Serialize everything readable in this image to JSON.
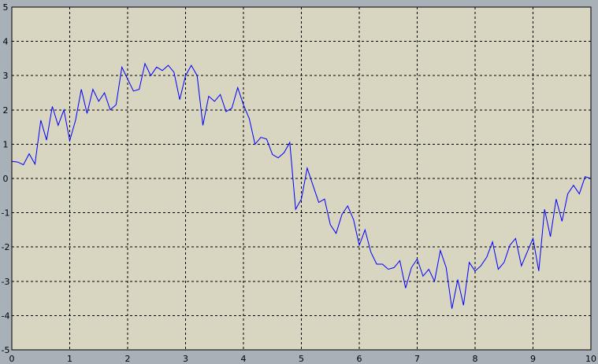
{
  "colors": {
    "background": "#a8b0b8",
    "plot_area": "#d8d5c0",
    "grid": "#000000",
    "series": "#0000ff"
  },
  "chart_data": {
    "type": "line",
    "title": "",
    "xlabel": "",
    "ylabel": "",
    "xlim": [
      0,
      10
    ],
    "ylim": [
      -5,
      5
    ],
    "grid": true,
    "grid_style": "dashed",
    "xticks": [
      0,
      1,
      2,
      3,
      4,
      5,
      6,
      7,
      8,
      9,
      10
    ],
    "yticks": [
      -5,
      -4,
      -3,
      -2,
      -1,
      0,
      1,
      2,
      3,
      4,
      5
    ],
    "series": [
      {
        "x": [
          0,
          0.1,
          0.2,
          0.3,
          0.4,
          0.5,
          0.6,
          0.7,
          0.8,
          0.9,
          1.0,
          1.1,
          1.2,
          1.3,
          1.4,
          1.5,
          1.6,
          1.7,
          1.8,
          1.9,
          2.0,
          2.1,
          2.2,
          2.3,
          2.4,
          2.5,
          2.6,
          2.7,
          2.8,
          2.9,
          3.0,
          3.1,
          3.2,
          3.3,
          3.4,
          3.5,
          3.6,
          3.7,
          3.8,
          3.9,
          4.0,
          4.1,
          4.2,
          4.3,
          4.4,
          4.5,
          4.6,
          4.7,
          4.8,
          4.9,
          5.0,
          5.1,
          5.2,
          5.3,
          5.4,
          5.5,
          5.6,
          5.7,
          5.8,
          5.9,
          6.0,
          6.1,
          6.2,
          6.3,
          6.4,
          6.5,
          6.6,
          6.7,
          6.8,
          6.9,
          7.0,
          7.1,
          7.2,
          7.3,
          7.4,
          7.5,
          7.6,
          7.7,
          7.8,
          7.9,
          8.0,
          8.1,
          8.2,
          8.3,
          8.4,
          8.5,
          8.6,
          8.7,
          8.8,
          8.9,
          9.0,
          9.1,
          9.2,
          9.3,
          9.4,
          9.5,
          9.6,
          9.7,
          9.8,
          9.9,
          10.0
        ],
        "y": [
          0.5,
          0.48,
          0.4,
          0.72,
          0.42,
          1.7,
          1.12,
          2.1,
          1.55,
          2.0,
          1.1,
          1.7,
          2.6,
          1.9,
          2.6,
          2.25,
          2.5,
          2.0,
          2.15,
          3.25,
          2.9,
          2.55,
          2.6,
          3.35,
          3.0,
          3.25,
          3.15,
          3.3,
          3.1,
          2.3,
          3.0,
          3.3,
          3.0,
          1.55,
          2.4,
          2.25,
          2.45,
          1.95,
          2.05,
          2.65,
          2.15,
          1.75,
          1.0,
          1.2,
          1.15,
          0.7,
          0.6,
          0.75,
          1.05,
          -0.9,
          -0.6,
          0.3,
          -0.2,
          -0.7,
          -0.6,
          -1.35,
          -1.6,
          -1.05,
          -0.8,
          -1.2,
          -1.95,
          -1.5,
          -2.15,
          -2.5,
          -2.5,
          -2.65,
          -2.6,
          -2.4,
          -3.2,
          -2.6,
          -2.35,
          -2.85,
          -2.65,
          -3.0,
          -2.1,
          -2.6,
          -3.8,
          -2.95,
          -3.7,
          -2.45,
          -2.7,
          -2.55,
          -2.3,
          -1.85,
          -2.65,
          -2.45,
          -1.95,
          -1.75,
          -2.55,
          -2.15,
          -1.75,
          -2.7,
          -0.9,
          -1.7,
          -0.6,
          -1.25,
          -0.45,
          -0.2,
          -0.45,
          0.05,
          0.0
        ]
      }
    ]
  }
}
